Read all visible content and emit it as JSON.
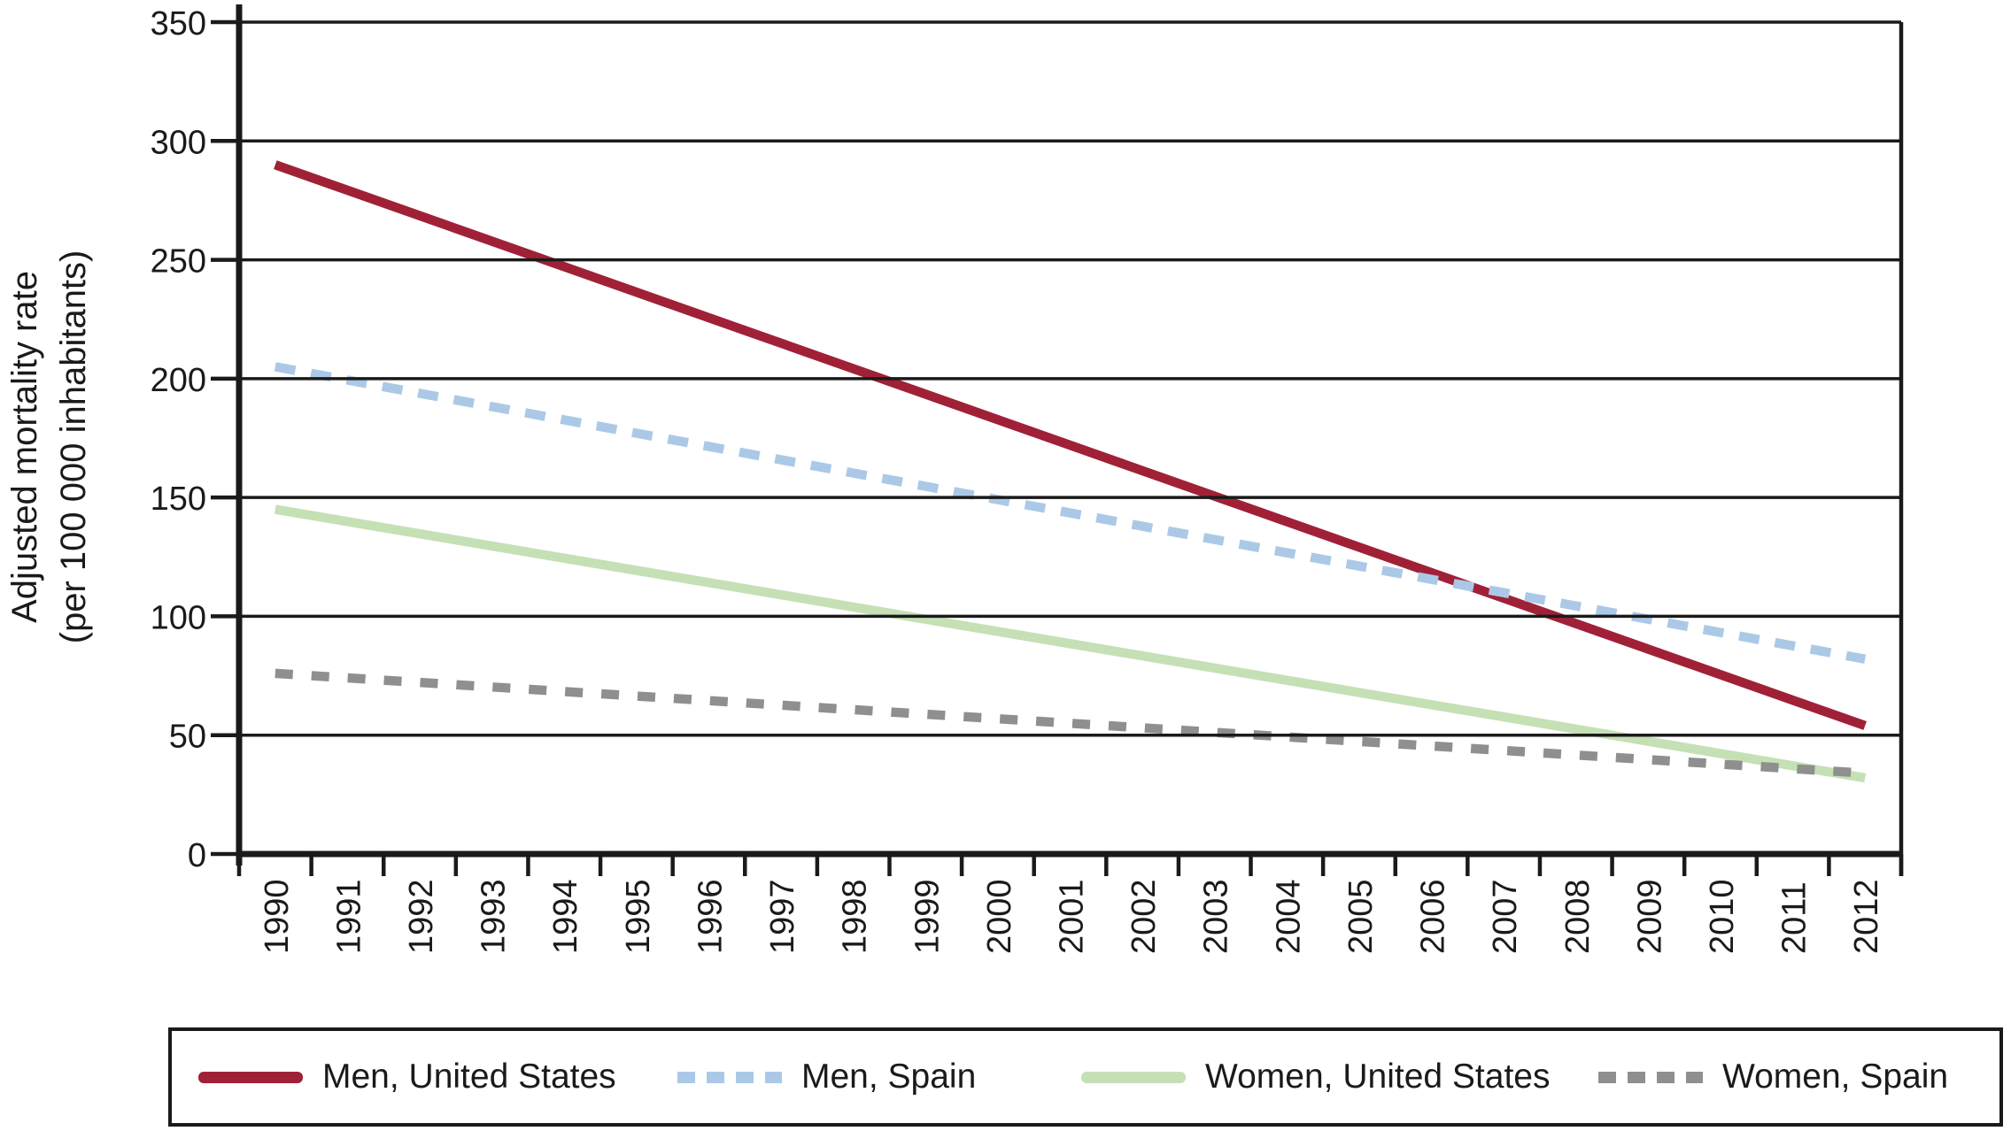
{
  "chart_data": {
    "type": "line",
    "title": "",
    "ylabel_line1": "Adjusted mortality rate",
    "ylabel_line2": "(per 100 000 inhabitants)",
    "xlabel": "",
    "ylim": [
      0,
      350
    ],
    "yticks": [
      0,
      50,
      100,
      150,
      200,
      250,
      300,
      350
    ],
    "x_categories": [
      "1990",
      "1991",
      "1992",
      "1993",
      "1994",
      "1995",
      "1996",
      "1997",
      "1998",
      "1999",
      "2000",
      "2001",
      "2002",
      "2003",
      "2004",
      "2005",
      "2006",
      "2007",
      "2008",
      "2009",
      "2010",
      "2011",
      "2012"
    ],
    "grid": "horizontal",
    "legend_position": "bottom",
    "axis_color": "#1a1a1a",
    "series": [
      {
        "name": "Men, United States",
        "color": "#a02137",
        "line_style": "solid",
        "x": [
          1990,
          2012
        ],
        "values": [
          290,
          54
        ]
      },
      {
        "name": "Men, Spain",
        "color": "#abc9e7",
        "line_style": "dashed",
        "x": [
          1990,
          2012
        ],
        "values": [
          205,
          82
        ]
      },
      {
        "name": "Women, United States",
        "color": "#c6e0b6",
        "line_style": "solid",
        "x": [
          1990,
          2012
        ],
        "values": [
          145,
          32
        ]
      },
      {
        "name": "Women, Spain",
        "color": "#8f8f8f",
        "line_style": "dashed",
        "x": [
          1990,
          2012
        ],
        "values": [
          76,
          34
        ]
      }
    ]
  }
}
